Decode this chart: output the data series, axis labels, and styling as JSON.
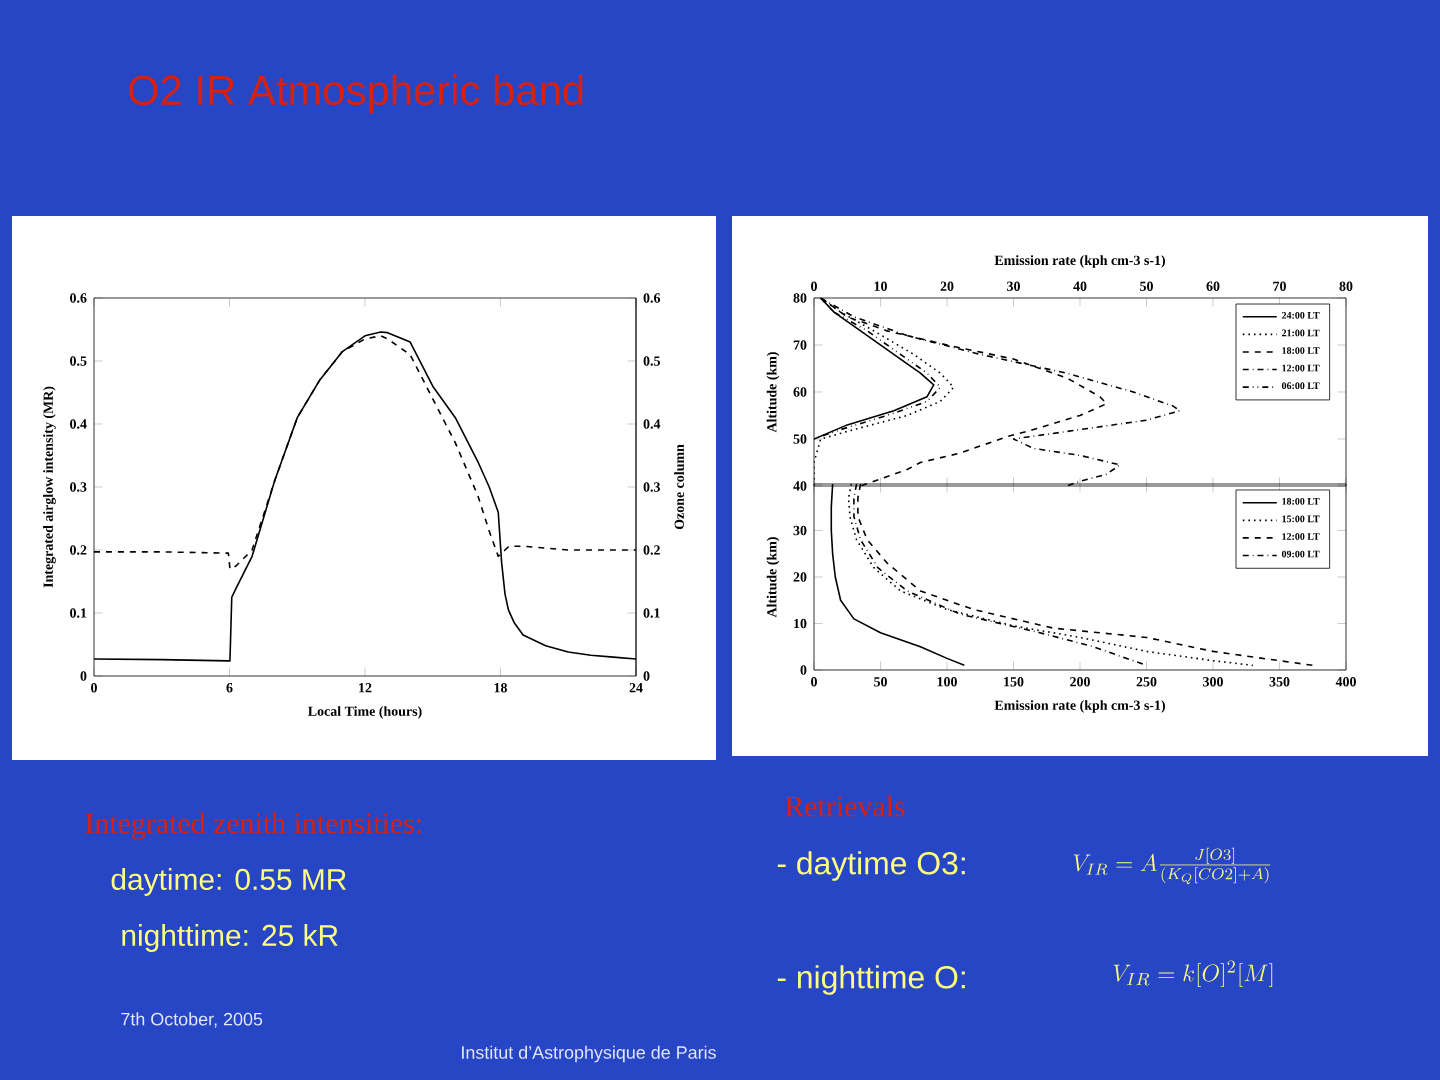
{
  "chart_data": [
    {
      "type": "line",
      "xlabel": "Local Time (hours)",
      "ylabel": "Integrated airglow intensity (MR)",
      "y2label": "Ozone column",
      "x": [
        0,
        3,
        5.95,
        6.02,
        6.1,
        6.3,
        7,
        8,
        9,
        10,
        11,
        12,
        12.7,
        13,
        14,
        15,
        16,
        17,
        17.5,
        17.9,
        18.05,
        18.2,
        18.35,
        18.6,
        19,
        20,
        21,
        22,
        23,
        24
      ],
      "xlim": [
        0,
        24
      ],
      "xticks": [
        0,
        6,
        12,
        18,
        24
      ],
      "ylim": [
        0,
        0.6
      ],
      "yticks": [
        0,
        0.1,
        0.2,
        0.3,
        0.4,
        0.5,
        0.6
      ],
      "y2lim": [
        0,
        0.6
      ],
      "y2ticks": [
        0,
        0.1,
        0.2,
        0.3,
        0.4,
        0.5,
        0.6
      ],
      "series": [
        {
          "color": "#000000",
          "line_style": "solid",
          "values": [
            0.027,
            0.026,
            0.024,
            0.024,
            0.125,
            0.14,
            0.19,
            0.31,
            0.41,
            0.47,
            0.515,
            0.54,
            0.546,
            0.545,
            0.53,
            0.46,
            0.41,
            0.34,
            0.3,
            0.26,
            0.18,
            0.13,
            0.105,
            0.085,
            0.065,
            0.048,
            0.038,
            0.033,
            0.03,
            0.027
          ]
        },
        {
          "color": "#000000",
          "line_style": "dashed",
          "axis": "y2",
          "values": [
            0.197,
            0.197,
            0.195,
            0.17,
            0.17,
            0.175,
            0.2,
            0.31,
            0.41,
            0.47,
            0.515,
            0.535,
            0.54,
            0.535,
            0.51,
            0.44,
            0.37,
            0.286,
            0.23,
            0.19,
            0.195,
            0.2,
            0.205,
            0.206,
            0.206,
            0.203,
            0.2,
            0.2,
            0.2,
            0.2
          ]
        }
      ]
    },
    {
      "type": "line",
      "xlabel": "Emission rate (kph cm-3 s-1)",
      "ylabel": "Altitude (km)",
      "xlim": [
        0,
        80
      ],
      "xticks": [
        0,
        10,
        20,
        30,
        40,
        50,
        60,
        70,
        80
      ],
      "ylim": [
        40,
        80
      ],
      "yticks": [
        40,
        50,
        60,
        70,
        80
      ],
      "legend": "top right",
      "series": [
        {
          "name": "24:00 LT",
          "color": "#000000",
          "line_style": "solid",
          "x": [
            1,
            3,
            7,
            12,
            16,
            18,
            17,
            12,
            5,
            0
          ],
          "values": [
            80,
            77,
            73,
            68,
            64,
            61.5,
            59,
            56,
            53,
            50
          ]
        },
        {
          "name": "21:00 LT",
          "color": "#000000",
          "line_style": "dotted",
          "x": [
            1,
            4,
            9,
            15,
            19,
            21,
            19,
            14,
            6,
            1,
            0,
            0
          ],
          "values": [
            80,
            77,
            73,
            68,
            64,
            61,
            58,
            55,
            52,
            50,
            45,
            40
          ]
        },
        {
          "name": "18:00 LT",
          "color": "#000000",
          "line_style": "dashed",
          "x": [
            1,
            5,
            11,
            20,
            30,
            38,
            43,
            44,
            40,
            33,
            29,
            22,
            16,
            14,
            10,
            7
          ],
          "values": [
            80,
            76,
            73,
            70,
            67,
            63,
            59,
            57.5,
            55,
            52,
            50.5,
            47,
            45,
            43.5,
            41.5,
            40
          ]
        },
        {
          "name": "12:00 LT",
          "color": "#000000",
          "line_style": "dashdot",
          "x": [
            1,
            6,
            14,
            25,
            38,
            48,
            54,
            55,
            50,
            40,
            30,
            33,
            40,
            46,
            44,
            40,
            38
          ],
          "values": [
            80,
            76,
            72,
            68,
            64,
            60,
            57,
            56,
            54,
            52,
            50,
            48,
            46.5,
            44.5,
            42.5,
            41,
            40
          ]
        },
        {
          "name": "06:00 LT",
          "color": "#000000",
          "line_style": "dashdotdot",
          "x": [
            1,
            3,
            8,
            13,
            17,
            19,
            17,
            11,
            4,
            0
          ],
          "values": [
            80,
            77,
            73,
            68,
            64,
            61,
            58,
            55,
            52,
            50
          ]
        }
      ]
    },
    {
      "type": "line",
      "xlabel": "Emission rate (kph cm-3 s-1)",
      "ylabel": "Altitude (km)",
      "xlim": [
        0,
        400
      ],
      "xticks": [
        0,
        50,
        100,
        150,
        200,
        250,
        300,
        350,
        400
      ],
      "ylim": [
        0,
        40
      ],
      "yticks": [
        0,
        10,
        20,
        30,
        {
          "value": 40,
          "label": null
        }
      ],
      "legend": "top right",
      "series": [
        {
          "name": "18:00 LT",
          "color": "#000000",
          "line_style": "solid",
          "x": [
            14,
            13,
            13,
            14,
            16,
            20,
            30,
            50,
            80,
            100,
            113
          ],
          "values": [
            40,
            35,
            30,
            25,
            20,
            15,
            11,
            8,
            5,
            2.5,
            1
          ]
        },
        {
          "name": "15:00 LT",
          "color": "#000000",
          "line_style": "dotted",
          "x": [
            28,
            26,
            27,
            32,
            45,
            65,
            100,
            150,
            200,
            250,
            300,
            330
          ],
          "values": [
            40,
            37,
            33,
            28,
            22,
            17,
            13,
            9.5,
            7,
            4,
            2,
            1
          ]
        },
        {
          "name": "12:00 LT",
          "color": "#000000",
          "line_style": "dashed",
          "x": [
            35,
            33,
            33,
            40,
            55,
            80,
            120,
            180,
            250,
            300,
            350,
            375
          ],
          "values": [
            40,
            37,
            33,
            28,
            23,
            17,
            13,
            9,
            7,
            4,
            2,
            1
          ]
        },
        {
          "name": "09:00 LT",
          "color": "#000000",
          "line_style": "dashdot",
          "x": [
            32,
            30,
            30,
            35,
            48,
            70,
            110,
            170,
            210,
            250
          ],
          "values": [
            40,
            37,
            33,
            28,
            22,
            17,
            12,
            8,
            5,
            1
          ]
        }
      ]
    },
    {
      "type": "other",
      "title": "O2 IR Atmospheric band",
      "annotations": [
        "Integrated zenith intensities:",
        "daytime: 0.55 MR",
        "nighttime: 25 kR",
        "7th October, 2005",
        "Institut d’Astrophysique de Paris",
        "Retrievals",
        "- daytime O3:",
        "V_{IR} = A\\frac{J[O3]}{(K_Q[CO2]+A)}",
        "- nighttime O:",
        "V_{IR} = k[O]^2[M]"
      ]
    }
  ]
}
